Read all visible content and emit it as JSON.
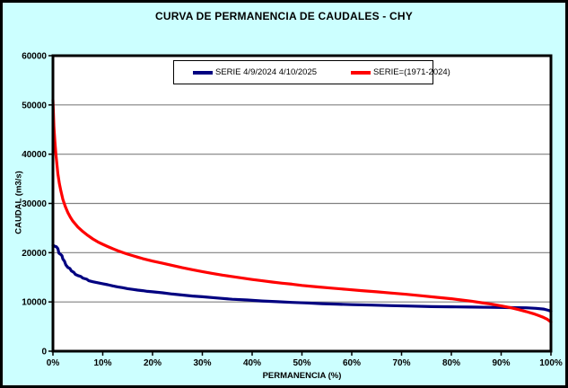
{
  "window": {
    "title": "CURVA DE PERMANENCIA DE CAUDALES - CHY"
  },
  "chart_data": {
    "type": "line",
    "title": "CURVA DE PERMANENCIA DE CAUDALES - CHY",
    "xlabel": "PERMANENCIA (%)",
    "ylabel": "CAUDAL (m3/s)",
    "xlim": [
      0,
      100
    ],
    "ylim": [
      0,
      60000
    ],
    "x_tick_labels": [
      "0%",
      "10%",
      "20%",
      "30%",
      "40%",
      "50%",
      "60%",
      "70%",
      "80%",
      "90%",
      "100%"
    ],
    "x_tick_values": [
      0,
      10,
      20,
      30,
      40,
      50,
      60,
      70,
      80,
      90,
      100
    ],
    "y_tick_labels": [
      "0",
      "10000",
      "20000",
      "30000",
      "40000",
      "50000",
      "60000"
    ],
    "y_tick_values": [
      0,
      10000,
      20000,
      30000,
      40000,
      50000,
      60000
    ],
    "grid": "horizontal",
    "legend_position": "top-center-inside",
    "colors": {
      "background": "#CCFFFF",
      "plot_background": "#FFFFFF",
      "gridline": "#808080",
      "axis": "#000000",
      "series_blue": "#000080",
      "series_red": "#FF0000"
    },
    "series": [
      {
        "name": "SERIE 4/9/2024 4/10/2025",
        "color": "#000080",
        "points": [
          [
            0,
            21500
          ],
          [
            0.4,
            21300
          ],
          [
            0.7,
            21200
          ],
          [
            1,
            20800
          ],
          [
            1.2,
            19900
          ],
          [
            1.5,
            19700
          ],
          [
            1.8,
            19400
          ],
          [
            2,
            18700
          ],
          [
            2.3,
            18300
          ],
          [
            2.6,
            17500
          ],
          [
            3,
            17000
          ],
          [
            3.4,
            16800
          ],
          [
            3.7,
            16300
          ],
          [
            4.2,
            16000
          ],
          [
            4.5,
            15600
          ],
          [
            5,
            15350
          ],
          [
            5.6,
            15150
          ],
          [
            6,
            14850
          ],
          [
            6.8,
            14600
          ],
          [
            7.2,
            14300
          ],
          [
            8,
            14100
          ],
          [
            9,
            13900
          ],
          [
            10,
            13700
          ],
          [
            11,
            13500
          ],
          [
            12,
            13250
          ],
          [
            13,
            13050
          ],
          [
            14,
            12900
          ],
          [
            15,
            12700
          ],
          [
            16,
            12550
          ],
          [
            17,
            12400
          ],
          [
            18,
            12300
          ],
          [
            19,
            12150
          ],
          [
            20,
            12050
          ],
          [
            22,
            11850
          ],
          [
            24,
            11600
          ],
          [
            26,
            11400
          ],
          [
            28,
            11200
          ],
          [
            30,
            11050
          ],
          [
            33,
            10800
          ],
          [
            36,
            10550
          ],
          [
            39,
            10400
          ],
          [
            42,
            10200
          ],
          [
            45,
            10050
          ],
          [
            48,
            9900
          ],
          [
            51,
            9800
          ],
          [
            54,
            9650
          ],
          [
            57,
            9550
          ],
          [
            60,
            9450
          ],
          [
            64,
            9350
          ],
          [
            68,
            9250
          ],
          [
            72,
            9150
          ],
          [
            76,
            9050
          ],
          [
            80,
            9000
          ],
          [
            84,
            8950
          ],
          [
            88,
            8900
          ],
          [
            92,
            8850
          ],
          [
            95,
            8800
          ],
          [
            97,
            8700
          ],
          [
            98.5,
            8550
          ],
          [
            99.5,
            8300
          ],
          [
            100,
            8100
          ]
        ]
      },
      {
        "name": "SERIE=(1971-2024)",
        "color": "#FF0000",
        "points": [
          [
            0,
            51000
          ],
          [
            0.2,
            45500
          ],
          [
            0.4,
            42500
          ],
          [
            0.6,
            40000
          ],
          [
            0.8,
            38000
          ],
          [
            1,
            36000
          ],
          [
            1.3,
            34000
          ],
          [
            1.6,
            32500
          ],
          [
            2,
            30800
          ],
          [
            2.5,
            29300
          ],
          [
            3,
            28100
          ],
          [
            3.5,
            27200
          ],
          [
            4,
            26400
          ],
          [
            5,
            25200
          ],
          [
            6,
            24300
          ],
          [
            7,
            23500
          ],
          [
            8,
            22800
          ],
          [
            9,
            22200
          ],
          [
            10,
            21700
          ],
          [
            11,
            21250
          ],
          [
            12,
            20800
          ],
          [
            13,
            20400
          ],
          [
            14,
            20050
          ],
          [
            15,
            19700
          ],
          [
            16,
            19400
          ],
          [
            17,
            19100
          ],
          [
            18,
            18800
          ],
          [
            19,
            18550
          ],
          [
            20,
            18300
          ],
          [
            22,
            17850
          ],
          [
            24,
            17400
          ],
          [
            26,
            16950
          ],
          [
            28,
            16550
          ],
          [
            30,
            16150
          ],
          [
            32,
            15800
          ],
          [
            34,
            15450
          ],
          [
            36,
            15150
          ],
          [
            38,
            14850
          ],
          [
            40,
            14550
          ],
          [
            42,
            14300
          ],
          [
            44,
            14050
          ],
          [
            46,
            13800
          ],
          [
            48,
            13600
          ],
          [
            50,
            13350
          ],
          [
            53,
            13050
          ],
          [
            56,
            12800
          ],
          [
            59,
            12550
          ],
          [
            62,
            12300
          ],
          [
            65,
            12050
          ],
          [
            68,
            11800
          ],
          [
            71,
            11550
          ],
          [
            74,
            11250
          ],
          [
            77,
            10950
          ],
          [
            80,
            10650
          ],
          [
            82,
            10400
          ],
          [
            84,
            10150
          ],
          [
            86,
            9850
          ],
          [
            88,
            9550
          ],
          [
            90,
            9200
          ],
          [
            92,
            8800
          ],
          [
            93.5,
            8450
          ],
          [
            95,
            8050
          ],
          [
            96.5,
            7600
          ],
          [
            97.5,
            7250
          ],
          [
            98.5,
            6850
          ],
          [
            99.3,
            6450
          ],
          [
            100,
            5900
          ]
        ]
      }
    ]
  }
}
